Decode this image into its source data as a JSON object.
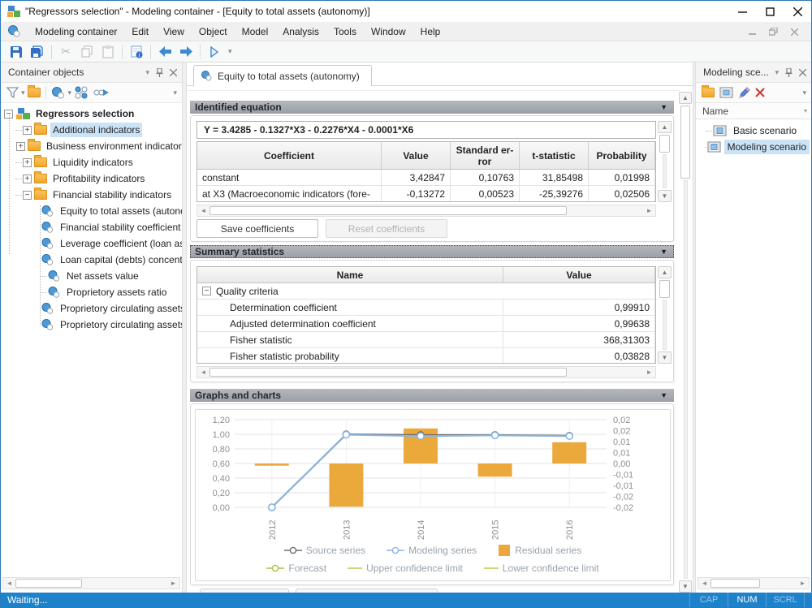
{
  "window": {
    "title": "\"Regressors selection\" - Modeling container - [Equity to total assets (autonomy)]"
  },
  "menu": {
    "items": [
      "Modeling container",
      "Edit",
      "View",
      "Object",
      "Model",
      "Analysis",
      "Tools",
      "Window",
      "Help"
    ]
  },
  "toolbar": {
    "buttons": [
      "save",
      "save-all",
      "cut",
      "copy",
      "paste",
      "properties",
      "back",
      "forward",
      "run",
      "run-options"
    ]
  },
  "left_panel": {
    "title": "Container objects",
    "tree": {
      "root": "Regressors selection",
      "groups": [
        {
          "label": "Additional indicators",
          "expanded": false,
          "selected": true
        },
        {
          "label": "Business environment indicators",
          "expanded": false,
          "selected": false
        },
        {
          "label": "Liquidity indicators",
          "expanded": false,
          "selected": false
        },
        {
          "label": "Profitability indicators",
          "expanded": false,
          "selected": false
        },
        {
          "label": "Financial stability indicators",
          "expanded": true,
          "selected": false
        }
      ],
      "leaves": [
        "Equity to total assets (autonomy)",
        "Financial stability coefficient",
        "Leverage coefficient (loan ass",
        "Loan capital (debts) concentra",
        "Net assets value",
        "Proprietory assets ratio",
        "Proprietory circulating assets",
        "Proprietory circulating assets"
      ]
    }
  },
  "main": {
    "tab_label": "Equity to total assets (autonomy)",
    "identified_equation": {
      "header": "Identified equation",
      "equation": "Y = 3.4285 - 0.1327*X3 - 0.2276*X4 - 0.0001*X6",
      "columns": [
        "Coefficient",
        "Value",
        "Standard er-ror",
        "t-statistic",
        "Probability"
      ],
      "rows": [
        [
          "constant",
          "3,42847",
          "0,10763",
          "31,85498",
          "0,01998"
        ],
        [
          "at X3 (Macroeconomic indicators (fore-",
          "-0,13272",
          "0,00523",
          "-25,39276",
          "0,02506"
        ]
      ],
      "save_label": "Save coefficients",
      "reset_label": "Reset coefficients"
    },
    "summary": {
      "header": "Summary statistics",
      "columns": [
        "Name",
        "Value"
      ],
      "group_label": "Quality criteria",
      "rows": [
        [
          "Determination coefficient",
          "0,99910"
        ],
        [
          "Adjusted determination coefficient",
          "0,99638"
        ],
        [
          "Fisher statistic",
          "368,31303"
        ],
        [
          "Fisher statistic probability",
          "0,03828"
        ]
      ]
    },
    "graphs": {
      "header": "Graphs and charts"
    }
  },
  "chart_data": {
    "type": "combo line+bar",
    "categories": [
      "2012",
      "2013",
      "2014",
      "2015",
      "2016"
    ],
    "series": [
      {
        "name": "Source series",
        "type": "line",
        "axis": "left",
        "color": "#6e6e6e",
        "legend": "circle",
        "values": [
          0.0,
          1.0,
          0.99,
          0.99,
          0.98
        ]
      },
      {
        "name": "Modeling series",
        "type": "line",
        "axis": "left",
        "color": "#8ab4e4",
        "legend": "circle",
        "values": [
          0.0,
          0.995,
          0.975,
          0.985,
          0.975
        ]
      },
      {
        "name": "Residual series",
        "type": "bar",
        "axis": "right",
        "color": "#eba93c",
        "legend": "square",
        "values": [
          -0.001,
          -0.0197,
          0.016,
          -0.006,
          0.0097
        ]
      },
      {
        "name": "Forecast",
        "type": "line",
        "axis": "left",
        "color": "#a9c23f",
        "legend": "circle",
        "values": []
      },
      {
        "name": "Upper confidence limit",
        "type": "line",
        "axis": "left",
        "color": "#c9d874",
        "legend": "line",
        "values": []
      },
      {
        "name": "Lower confidence limit",
        "type": "line",
        "axis": "left",
        "color": "#c9d874",
        "legend": "line",
        "values": []
      }
    ],
    "left_axis": {
      "min": 0,
      "max": 1.2,
      "step": 0.2,
      "labels": [
        "1,20",
        "1,00",
        "0,80",
        "0,60",
        "0,40",
        "0,20",
        "0,00"
      ]
    },
    "right_axis": {
      "min": -0.02,
      "max": 0.02,
      "step": 0.005,
      "labels": [
        "0,02",
        "0,02",
        "0,01",
        "0,01",
        "0,00",
        "-0,01",
        "-0,01",
        "-0,02",
        "-0,02"
      ]
    },
    "grid": true,
    "legend_position": "bottom",
    "title": "",
    "xlabel": "",
    "ylabel": ""
  },
  "right_panel": {
    "title": "Modeling sce...",
    "column_header": "Name",
    "items": [
      {
        "label": "Basic scenario",
        "selected": false
      },
      {
        "label": "Modeling scenario",
        "selected": true
      }
    ]
  },
  "status_bar": {
    "text": "Waiting...",
    "indicators": [
      {
        "label": "CAP",
        "active": false
      },
      {
        "label": "NUM",
        "active": true
      },
      {
        "label": "SCRL",
        "active": false
      }
    ]
  }
}
